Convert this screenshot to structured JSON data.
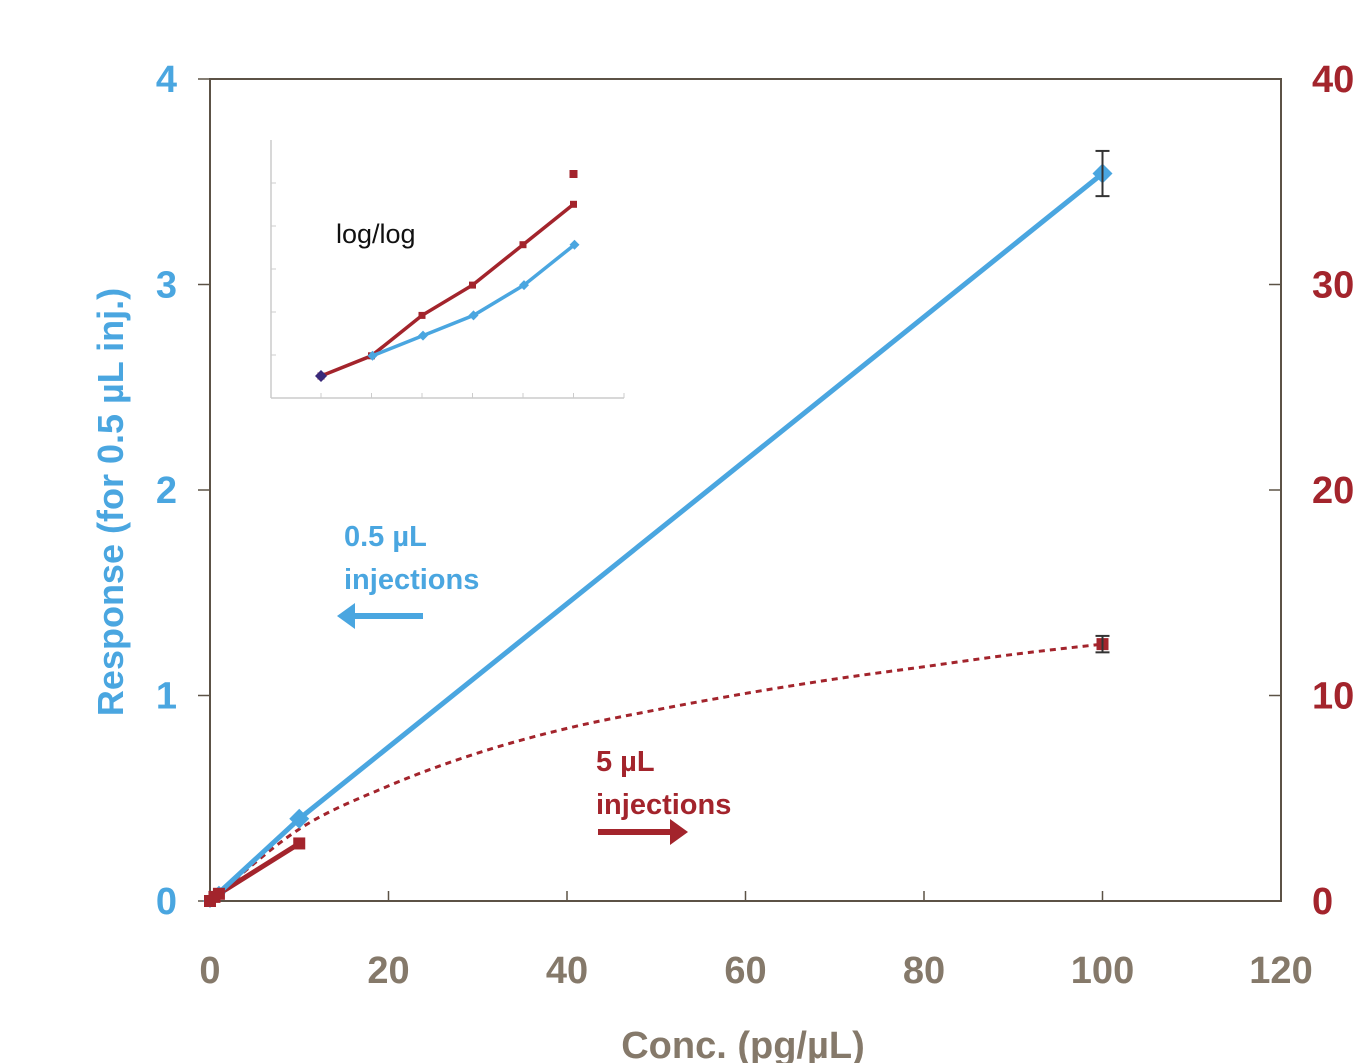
{
  "chart_data": {
    "type": "line",
    "title": "",
    "xlabel": "Conc. (pg/µL)",
    "ylabel": "Response (for 0.5 µL inj.)",
    "y2label": "",
    "xlim": [
      0,
      120
    ],
    "ylim": [
      0,
      4
    ],
    "y2lim": [
      0,
      40
    ],
    "x_ticks": [
      0,
      20,
      40,
      60,
      80,
      100,
      120
    ],
    "y_ticks": [
      0,
      1,
      2,
      3,
      4
    ],
    "y2_ticks": [
      0,
      10,
      20,
      30,
      40
    ],
    "grid": false,
    "colors": {
      "blue": "#4aa6e0",
      "red": "#a3242c",
      "axis": "#85796a"
    },
    "series": [
      {
        "axis": "left",
        "line": "solid",
        "marker": "diamond",
        "color": "#4aa6e0",
        "x": [
          0,
          0.5,
          1,
          10,
          100
        ],
        "y": [
          0.0,
          0.02,
          0.04,
          0.4,
          3.54
        ],
        "error_bars": [
          null,
          null,
          null,
          null,
          0.11
        ]
      },
      {
        "axis": "right",
        "line": "dotted",
        "marker": "square",
        "color": "#a3242c",
        "x": [
          0,
          0.5,
          1,
          10,
          100
        ],
        "y": [
          0.0,
          0.2,
          0.35,
          2.8,
          12.5
        ],
        "error_bars": [
          null,
          null,
          null,
          null,
          0.4
        ],
        "fit": {
          "x": [
            0,
            10,
            20,
            30,
            40,
            50,
            60,
            70,
            80,
            90,
            100
          ],
          "y": [
            0,
            3.5,
            5.6,
            7.2,
            8.4,
            9.3,
            10.1,
            10.8,
            11.4,
            12.0,
            12.5
          ]
        }
      }
    ],
    "annotations": {
      "blue_line1": "0.5 µL",
      "blue_line2": "injections",
      "red_line1": "5 µL",
      "red_line2": "injections"
    },
    "inset": {
      "label": "log/log",
      "scale": "log-log",
      "blue_points": [
        [
          1,
          0.02
        ],
        [
          2,
          0.04
        ],
        [
          3,
          0.06
        ],
        [
          4,
          0.09
        ],
        [
          5,
          0.13
        ]
      ],
      "red_points": [
        [
          0,
          0.0
        ],
        [
          1,
          0.02
        ],
        [
          2,
          0.06
        ],
        [
          3,
          0.09
        ],
        [
          4,
          0.13
        ],
        [
          5,
          0.17
        ]
      ],
      "red_outlier": [
        5,
        0.2
      ]
    }
  }
}
